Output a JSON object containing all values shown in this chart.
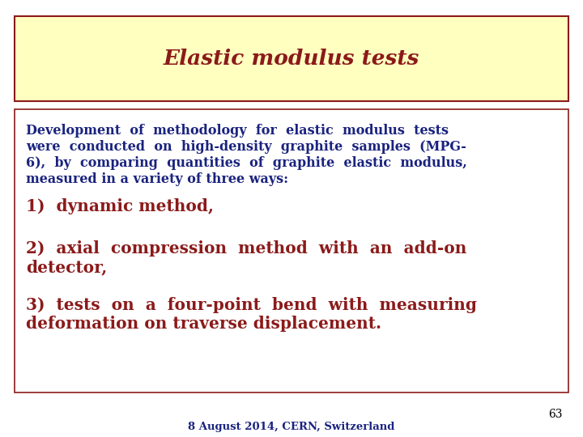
{
  "title": "Elastic modulus tests",
  "title_color": "#8B1A1A",
  "title_bg_color": "#FFFFC0",
  "title_border_color": "#8B1A1A",
  "body_text_color": "#1A237E",
  "body_highlight_color": "#8B1A1A",
  "body_border_color": "#8B1A1A",
  "body_bg_color": "#FFFFFF",
  "page_bg_color": "#FFFFFF",
  "footer_text": "8 August 2014, CERN, Switzerland",
  "page_number": "63",
  "intro_line1": "Development  of  methodology  for  elastic  modulus  tests",
  "intro_line2": "were  conducted  on  high-density  graphite  samples  (MPG-",
  "intro_line3": "6),  by  comparing  quantities  of  graphite  elastic  modulus,",
  "intro_line4": "measured in a variety of three ways:",
  "item1": "1)  dynamic method,",
  "item2a": "2)  axial  compression  method  with  an  add-on",
  "item2b": "detector,",
  "item3a": "3)  tests  on  a  four-point  bend  with  measuring",
  "item3b": "deformation on traverse displacement."
}
